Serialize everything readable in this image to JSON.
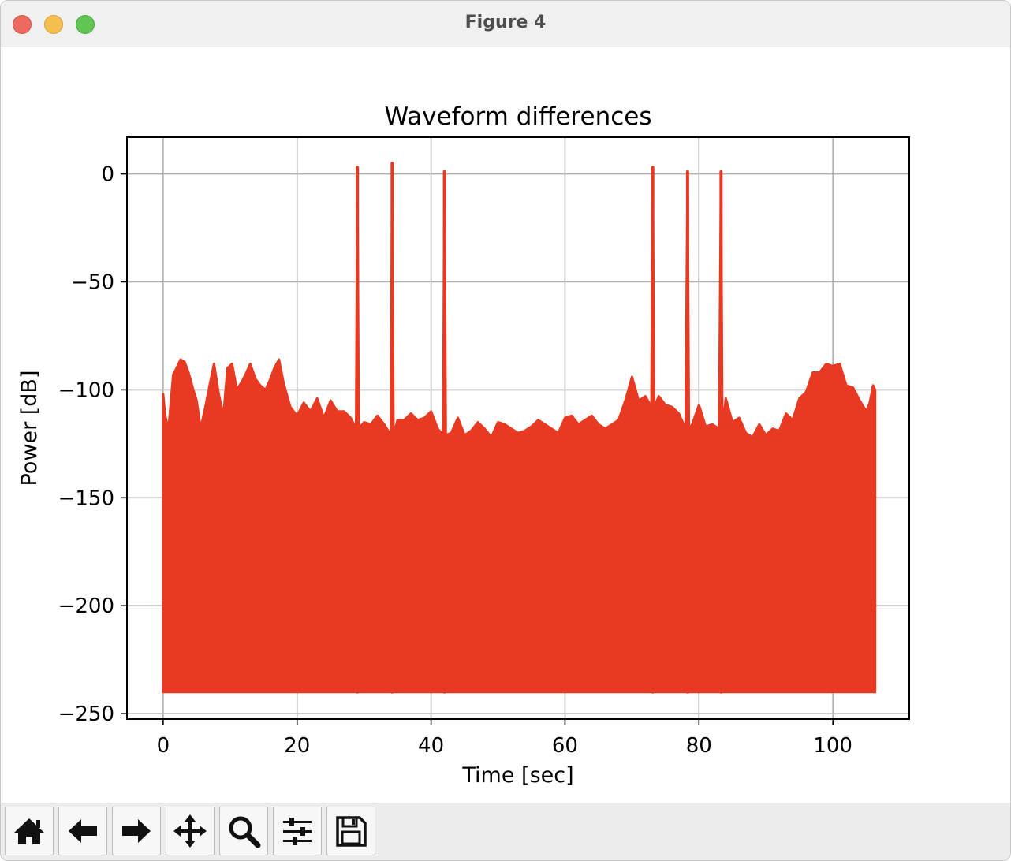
{
  "window": {
    "title": "Figure 4"
  },
  "toolbar": {
    "buttons": [
      {
        "icon": "home-icon",
        "name": "home-button"
      },
      {
        "icon": "arrow-left-icon",
        "name": "back-button"
      },
      {
        "icon": "arrow-right-icon",
        "name": "forward-button"
      },
      {
        "icon": "move-icon",
        "name": "pan-button"
      },
      {
        "icon": "magnifier-icon",
        "name": "zoom-button"
      },
      {
        "icon": "sliders-icon",
        "name": "configure-subplots-button"
      },
      {
        "icon": "floppy-disk-icon",
        "name": "save-button"
      }
    ]
  },
  "colors": {
    "series": "#e83a22",
    "grid": "#b0b0b0",
    "axes": "#000000"
  },
  "chart_data": {
    "type": "area",
    "title": "Waveform differences",
    "xlabel": "Time [sec]",
    "ylabel": "Power [dB]",
    "xlim": [
      -5.4,
      111.4
    ],
    "ylim": [
      -252.5,
      17
    ],
    "xticks": [
      0,
      20,
      40,
      60,
      80,
      100
    ],
    "xtick_labels": [
      "0",
      "20",
      "40",
      "60",
      "80",
      "100"
    ],
    "yticks": [
      0,
      -50,
      -100,
      -150,
      -200,
      -250
    ],
    "ytick_labels": [
      "0",
      "−50",
      "−100",
      "−150",
      "−200",
      "−250"
    ],
    "grid": true,
    "floor": -240,
    "series": [
      {
        "values_upper_envelope": {
          "x": [
            0,
            0.3,
            0.8,
            1.5,
            2.0,
            2.6,
            3.2,
            3.8,
            4.5,
            5.0,
            5.6,
            6.3,
            7.0,
            7.6,
            8.3,
            9.0,
            9.6,
            10.3,
            11.0,
            11.8,
            12.3,
            13.0,
            13.8,
            14.5,
            15.3,
            16.0,
            16.6,
            17.3,
            18.0,
            19.0,
            20.0,
            21.0,
            22.0,
            23.0,
            24.0,
            25.0,
            26.0,
            27.0,
            28.0,
            28.8,
            29.0,
            29.2,
            30.0,
            31.0,
            32.0,
            33.0,
            34.0,
            34.2,
            34.4,
            35.0,
            36.0,
            37.0,
            38.0,
            39.0,
            40.0,
            41.0,
            41.8,
            42.0,
            42.2,
            43.0,
            44.0,
            45.0,
            46.0,
            47.0,
            48.0,
            49.0,
            50.0,
            51.0,
            52.0,
            53.0,
            54.0,
            55.0,
            56.0,
            57.0,
            58.0,
            59.0,
            60.0,
            61.0,
            62.0,
            63.0,
            64.0,
            65.0,
            66.0,
            67.0,
            68.0,
            69.0,
            70.0,
            71.0,
            72.0,
            72.9,
            73.1,
            73.3,
            74.0,
            75.0,
            76.0,
            77.0,
            78.0,
            78.3,
            78.5,
            79.0,
            80.0,
            81.0,
            82.0,
            83.0,
            83.3,
            83.5,
            84.0,
            85.0,
            86.0,
            87.0,
            88.0,
            89.0,
            90.0,
            91.0,
            92.0,
            93.0,
            94.0,
            95.0,
            96.0,
            97.0,
            98.0,
            99.0,
            100.0,
            101.0,
            102.0,
            103.0,
            104.0,
            105.0,
            105.5,
            106.0,
            106.3
          ],
          "y": [
            -102,
            -112,
            -118,
            -93,
            -90,
            -86,
            -87,
            -92,
            -100,
            -105,
            -118,
            -108,
            -97,
            -88,
            -102,
            -112,
            -90,
            -88,
            -100,
            -96,
            -93,
            -88,
            -95,
            -98,
            -100,
            -95,
            -90,
            -86,
            -97,
            -108,
            -112,
            -106,
            -110,
            -104,
            -113,
            -105,
            -110,
            -110,
            -113,
            -118,
            3,
            -118,
            -115,
            -116,
            -112,
            -116,
            -121,
            5,
            -121,
            -114,
            -114,
            -111,
            -114,
            -113,
            -110,
            -118,
            -121,
            1,
            -121,
            -120,
            -113,
            -121,
            -119,
            -115,
            -118,
            -122,
            -115,
            -116,
            -118,
            -120,
            -119,
            -117,
            -114,
            -116,
            -118,
            -120,
            -113,
            -112,
            -116,
            -114,
            -112,
            -116,
            -118,
            -116,
            -114,
            -105,
            -94,
            -105,
            -103,
            -108,
            3,
            -108,
            -103,
            -107,
            -108,
            -111,
            -118,
            1,
            -118,
            -116,
            -107,
            -117,
            -116,
            -118,
            1,
            -118,
            -104,
            -115,
            -113,
            -120,
            -122,
            -116,
            -121,
            -118,
            -119,
            -111,
            -114,
            -104,
            -101,
            -92,
            -92,
            -88,
            -89,
            -88,
            -98,
            -99,
            -105,
            -110,
            -106,
            -98,
            -100
          ]
        }
      }
    ]
  }
}
